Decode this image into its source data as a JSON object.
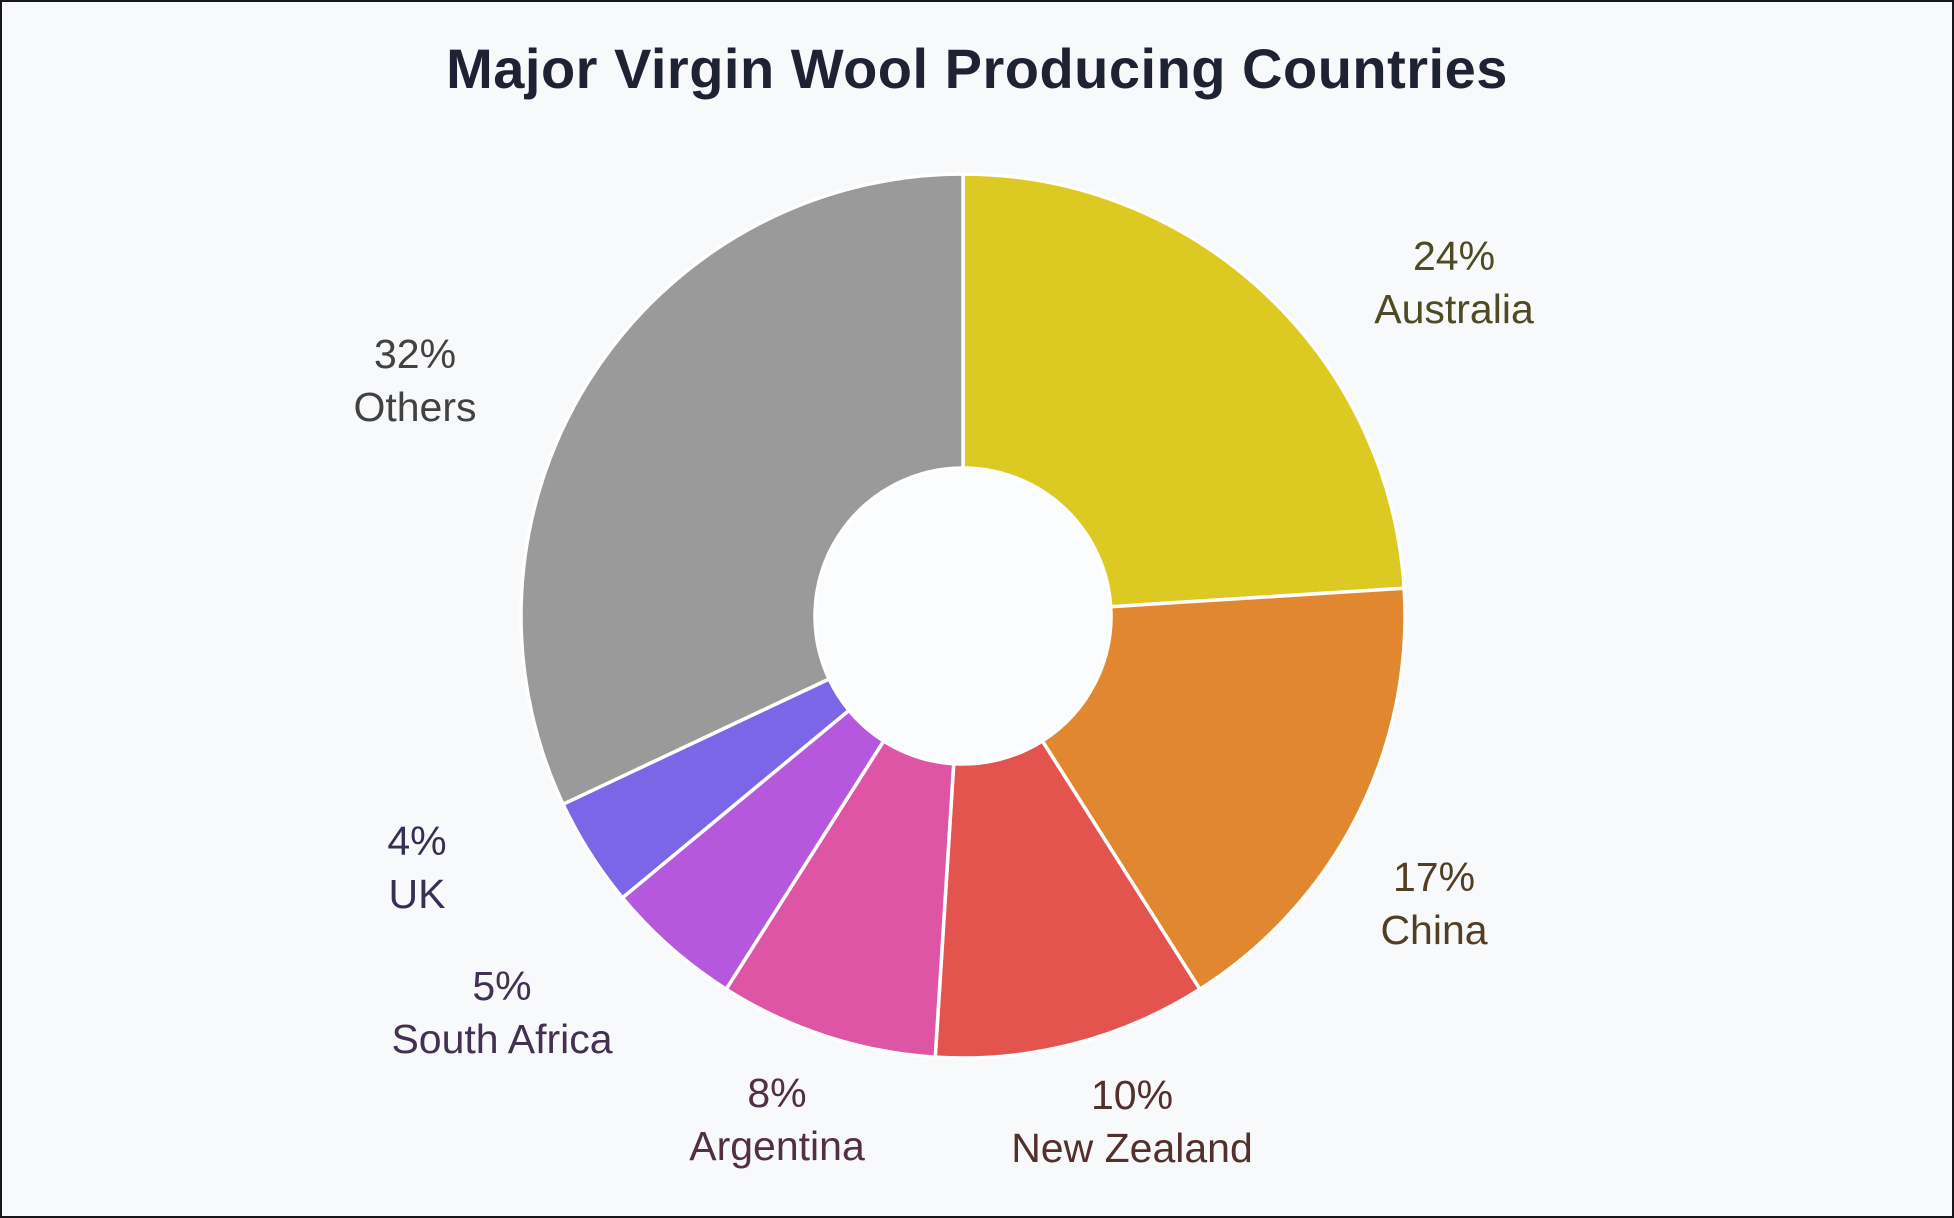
{
  "title": "Major Virgin Wool Producing Countries",
  "chart_data": {
    "type": "pie",
    "subtype": "donut",
    "title": "Major Virgin Wool Producing Countries",
    "unit": "%",
    "start_angle_deg": 0,
    "direction": "clockwise",
    "legend_position": "none",
    "labels": "outside, two lines: '{value}%' then '{category}'",
    "categories": [
      "Australia",
      "China",
      "New Zealand",
      "Argentina",
      "South Africa",
      "UK",
      "Others"
    ],
    "values": [
      24,
      17,
      10,
      8,
      5,
      4,
      32
    ],
    "colors": [
      "#dcc922",
      "#e0872f",
      "#e4544f",
      "#de55a5",
      "#b558dd",
      "#7a66e6",
      "#9a9a9a"
    ],
    "label_colors": [
      "#4e4a24",
      "#513e24",
      "#54302d",
      "#522f44",
      "#443050",
      "#363055",
      "#424242"
    ],
    "hole_color": "#fbfcfd",
    "background_color": "#f8f9fb",
    "title_color": "#1e2233"
  }
}
